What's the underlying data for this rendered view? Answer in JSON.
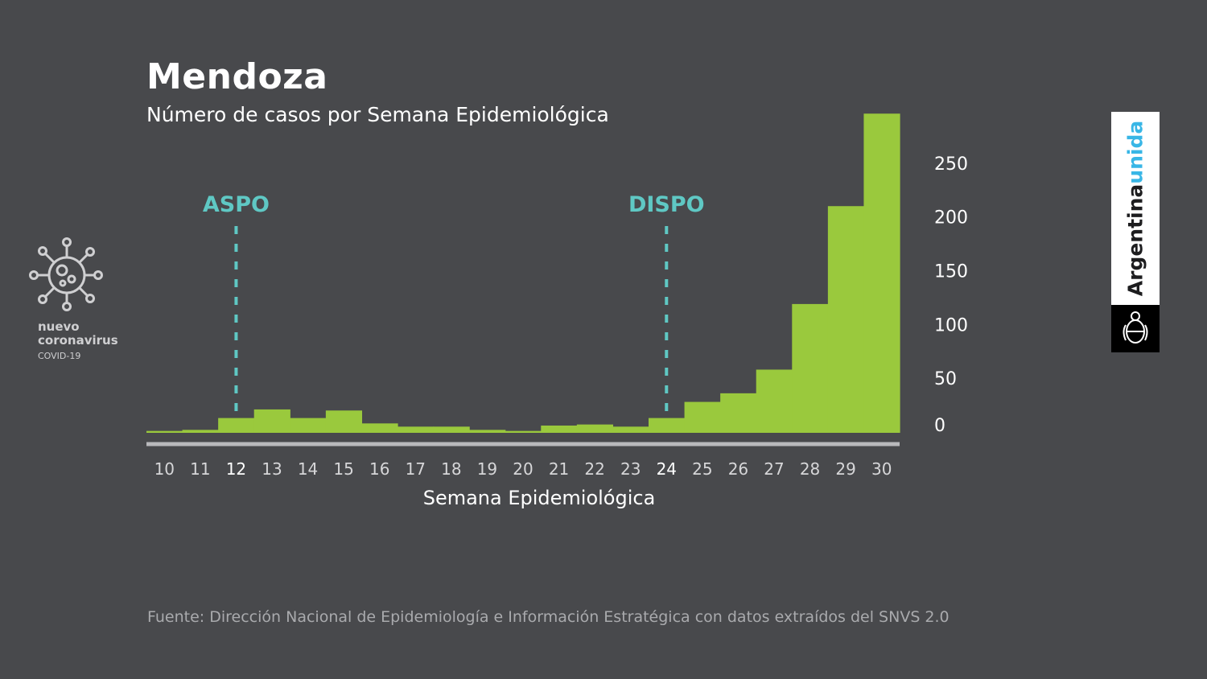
{
  "title": "Mendoza",
  "subtitle": "Número de casos por Semana Epidemiológica",
  "source": "Fuente: Dirección Nacional de Epidemiología e Información Estratégica con datos extraídos del SNVS 2.0",
  "logo": {
    "line1": "nuevo",
    "line2": "coronavirus",
    "line3": "COVID-19",
    "icon": "virus-icon"
  },
  "brand": {
    "word1": "Argentina",
    "word2": "unida",
    "emblem": "coat-of-arms-icon"
  },
  "colors": {
    "background": "#48494c",
    "bar": "#9ac93d",
    "marker": "#5fc8c4",
    "axis": "#b9b9bc",
    "text": "#ffffff",
    "tick": "#d6d6d8"
  },
  "chart_data": {
    "type": "bar",
    "title": "Mendoza",
    "subtitle": "Número de casos por Semana Epidemiológica",
    "xlabel": "Semana Epidemiológica",
    "ylabel": "",
    "categories": [
      "10",
      "11",
      "12",
      "13",
      "14",
      "15",
      "16",
      "17",
      "18",
      "19",
      "20",
      "21",
      "22",
      "23",
      "24",
      "25",
      "26",
      "27",
      "28",
      "29",
      "30"
    ],
    "values": [
      1,
      2,
      13,
      21,
      13,
      20,
      8,
      5,
      5,
      2,
      1,
      6,
      7,
      5,
      13,
      28,
      36,
      58,
      119,
      210,
      296
    ],
    "yticks": [
      "0",
      "50",
      "100",
      "150",
      "200",
      "250"
    ],
    "ylim": [
      0,
      296
    ],
    "highlighted_categories": [
      "12",
      "24"
    ],
    "annotations": [
      {
        "label": "ASPO",
        "category": "12"
      },
      {
        "label": "DISPO",
        "category": "24"
      }
    ],
    "grid": false,
    "legend": "none"
  }
}
